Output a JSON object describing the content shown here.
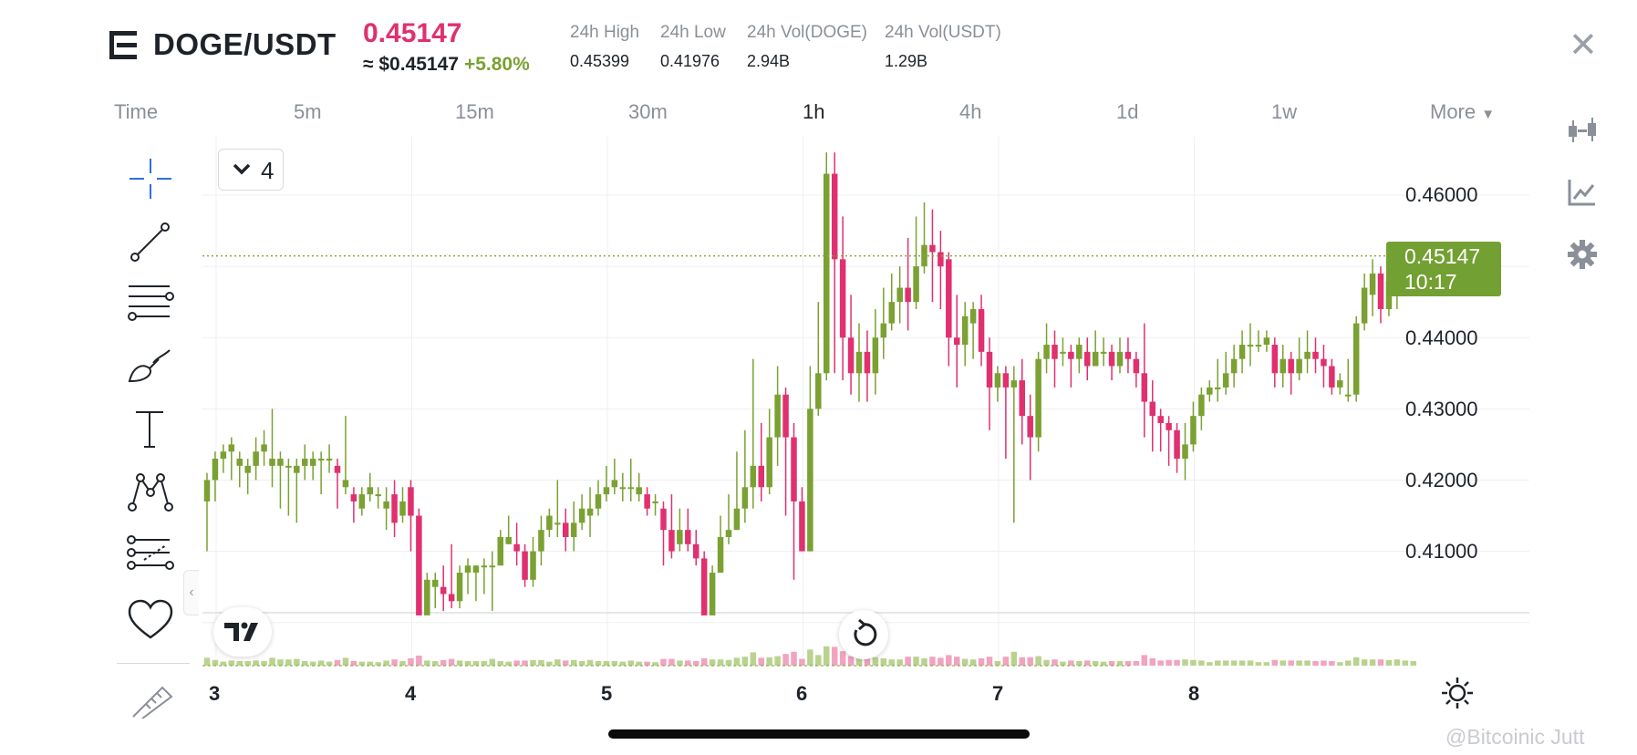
{
  "header": {
    "pair": "DOGE/USDT",
    "last_price": "0.45147",
    "usd_approx": "≈ $0.45147",
    "change": "+5.80%",
    "stats": [
      {
        "label": "24h High",
        "value": "0.45399"
      },
      {
        "label": "24h Low",
        "value": "0.41976"
      },
      {
        "label": "24h Vol(DOGE)",
        "value": "2.94B"
      },
      {
        "label": "24h Vol(USDT)",
        "value": "1.29B"
      }
    ]
  },
  "timeframes": {
    "time_label": "Time",
    "items": [
      "5m",
      "15m",
      "30m",
      "1h",
      "4h",
      "1d",
      "1w"
    ],
    "active": "1h",
    "more_label": "More"
  },
  "chart": {
    "interval_value": "4",
    "price_tag": {
      "price": "0.45147",
      "countdown": "10:17"
    },
    "watermark": "@Bitcoinic Jutt",
    "colors": {
      "up": "#7aa132",
      "down": "#e0306f",
      "tag": "#73a032"
    }
  },
  "chart_data": {
    "type": "candlestick",
    "x_ticks": [
      "3",
      "4",
      "5",
      "6",
      "7",
      "8"
    ],
    "y_ticks": [
      "0.46000",
      "0.44000",
      "0.43000",
      "0.42000",
      "0.41000"
    ],
    "ylim": [
      0.4,
      0.466
    ],
    "last_price": 0.45147,
    "start_day": 3,
    "interval_hours": 1,
    "candles": [
      [
        0.417,
        0.42,
        0.41,
        0.421
      ],
      [
        0.42,
        0.423,
        0.417,
        0.424
      ],
      [
        0.423,
        0.424,
        0.421,
        0.425
      ],
      [
        0.424,
        0.425,
        0.42,
        0.426
      ],
      [
        0.422,
        0.423,
        0.419,
        0.424
      ],
      [
        0.421,
        0.422,
        0.418,
        0.423
      ],
      [
        0.422,
        0.424,
        0.42,
        0.426
      ],
      [
        0.424,
        0.425,
        0.422,
        0.427
      ],
      [
        0.422,
        0.423,
        0.419,
        0.43
      ],
      [
        0.422,
        0.423,
        0.416,
        0.424
      ],
      [
        0.422,
        0.422,
        0.415,
        0.423
      ],
      [
        0.421,
        0.422,
        0.414,
        0.423
      ],
      [
        0.422,
        0.423,
        0.42,
        0.425
      ],
      [
        0.422,
        0.423,
        0.42,
        0.424
      ],
      [
        0.423,
        0.423,
        0.418,
        0.424
      ],
      [
        0.423,
        0.423,
        0.421,
        0.425
      ],
      [
        0.422,
        0.421,
        0.416,
        0.423
      ],
      [
        0.419,
        0.42,
        0.418,
        0.429
      ],
      [
        0.418,
        0.417,
        0.414,
        0.419
      ],
      [
        0.416,
        0.418,
        0.415,
        0.419
      ],
      [
        0.418,
        0.419,
        0.417,
        0.421
      ],
      [
        0.418,
        0.418,
        0.416,
        0.419
      ],
      [
        0.416,
        0.417,
        0.413,
        0.419
      ],
      [
        0.418,
        0.414,
        0.412,
        0.42
      ],
      [
        0.415,
        0.417,
        0.414,
        0.419
      ],
      [
        0.419,
        0.415,
        0.41,
        0.42
      ],
      [
        0.415,
        0.401,
        0.401,
        0.416
      ],
      [
        0.401,
        0.406,
        0.401,
        0.407
      ],
      [
        0.405,
        0.406,
        0.402,
        0.407
      ],
      [
        0.405,
        0.404,
        0.401,
        0.408
      ],
      [
        0.404,
        0.403,
        0.402,
        0.411
      ],
      [
        0.403,
        0.407,
        0.402,
        0.408
      ],
      [
        0.407,
        0.408,
        0.404,
        0.409
      ],
      [
        0.407,
        0.408,
        0.403,
        0.408
      ],
      [
        0.408,
        0.408,
        0.404,
        0.409
      ],
      [
        0.408,
        0.408,
        0.401,
        0.41
      ],
      [
        0.408,
        0.412,
        0.408,
        0.413
      ],
      [
        0.411,
        0.412,
        0.411,
        0.415
      ],
      [
        0.411,
        0.41,
        0.408,
        0.414
      ],
      [
        0.41,
        0.406,
        0.405,
        0.411
      ],
      [
        0.406,
        0.41,
        0.405,
        0.412
      ],
      [
        0.41,
        0.413,
        0.408,
        0.415
      ],
      [
        0.413,
        0.415,
        0.412,
        0.416
      ],
      [
        0.414,
        0.414,
        0.412,
        0.42
      ],
      [
        0.414,
        0.412,
        0.41,
        0.416
      ],
      [
        0.412,
        0.414,
        0.41,
        0.417
      ],
      [
        0.414,
        0.416,
        0.413,
        0.418
      ],
      [
        0.415,
        0.416,
        0.412,
        0.419
      ],
      [
        0.416,
        0.418,
        0.415,
        0.42
      ],
      [
        0.418,
        0.419,
        0.417,
        0.422
      ],
      [
        0.419,
        0.42,
        0.418,
        0.423
      ],
      [
        0.419,
        0.419,
        0.417,
        0.421
      ],
      [
        0.419,
        0.419,
        0.417,
        0.423
      ],
      [
        0.418,
        0.419,
        0.417,
        0.421
      ],
      [
        0.418,
        0.416,
        0.415,
        0.419
      ],
      [
        0.417,
        0.417,
        0.415,
        0.418
      ],
      [
        0.416,
        0.413,
        0.408,
        0.417
      ],
      [
        0.413,
        0.41,
        0.409,
        0.418
      ],
      [
        0.411,
        0.413,
        0.41,
        0.416
      ],
      [
        0.413,
        0.411,
        0.41,
        0.416
      ],
      [
        0.411,
        0.409,
        0.408,
        0.413
      ],
      [
        0.409,
        0.401,
        0.4,
        0.41
      ],
      [
        0.401,
        0.407,
        0.4,
        0.408
      ],
      [
        0.407,
        0.412,
        0.407,
        0.415
      ],
      [
        0.412,
        0.413,
        0.411,
        0.418
      ],
      [
        0.413,
        0.416,
        0.413,
        0.424
      ],
      [
        0.416,
        0.419,
        0.414,
        0.427
      ],
      [
        0.419,
        0.422,
        0.416,
        0.437
      ],
      [
        0.422,
        0.419,
        0.417,
        0.428
      ],
      [
        0.419,
        0.426,
        0.418,
        0.43
      ],
      [
        0.426,
        0.432,
        0.422,
        0.436
      ],
      [
        0.432,
        0.426,
        0.415,
        0.433
      ],
      [
        0.426,
        0.417,
        0.406,
        0.428
      ],
      [
        0.417,
        0.41,
        0.41,
        0.419
      ],
      [
        0.41,
        0.43,
        0.41,
        0.436
      ],
      [
        0.43,
        0.435,
        0.429,
        0.445
      ],
      [
        0.435,
        0.463,
        0.434,
        0.466
      ],
      [
        0.463,
        0.451,
        0.435,
        0.466
      ],
      [
        0.451,
        0.44,
        0.434,
        0.457
      ],
      [
        0.44,
        0.435,
        0.432,
        0.446
      ],
      [
        0.435,
        0.438,
        0.431,
        0.442
      ],
      [
        0.438,
        0.435,
        0.431,
        0.441
      ],
      [
        0.435,
        0.44,
        0.432,
        0.444
      ],
      [
        0.44,
        0.442,
        0.437,
        0.447
      ],
      [
        0.442,
        0.445,
        0.441,
        0.449
      ],
      [
        0.445,
        0.447,
        0.442,
        0.45
      ],
      [
        0.447,
        0.445,
        0.441,
        0.454
      ],
      [
        0.445,
        0.45,
        0.444,
        0.457
      ],
      [
        0.45,
        0.453,
        0.449,
        0.459
      ],
      [
        0.453,
        0.452,
        0.445,
        0.458
      ],
      [
        0.452,
        0.45,
        0.444,
        0.455
      ],
      [
        0.451,
        0.44,
        0.436,
        0.452
      ],
      [
        0.44,
        0.439,
        0.433,
        0.446
      ],
      [
        0.439,
        0.443,
        0.436,
        0.445
      ],
      [
        0.442,
        0.444,
        0.437,
        0.445
      ],
      [
        0.444,
        0.438,
        0.436,
        0.446
      ],
      [
        0.438,
        0.433,
        0.427,
        0.44
      ],
      [
        0.433,
        0.435,
        0.431,
        0.436
      ],
      [
        0.435,
        0.433,
        0.423,
        0.436
      ],
      [
        0.433,
        0.434,
        0.414,
        0.436
      ],
      [
        0.434,
        0.429,
        0.425,
        0.437
      ],
      [
        0.429,
        0.426,
        0.42,
        0.432
      ],
      [
        0.426,
        0.437,
        0.424,
        0.438
      ],
      [
        0.437,
        0.439,
        0.435,
        0.442
      ],
      [
        0.439,
        0.437,
        0.433,
        0.441
      ],
      [
        0.438,
        0.438,
        0.436,
        0.44
      ],
      [
        0.438,
        0.437,
        0.433,
        0.439
      ],
      [
        0.437,
        0.439,
        0.435,
        0.44
      ],
      [
        0.438,
        0.436,
        0.434,
        0.44
      ],
      [
        0.436,
        0.438,
        0.436,
        0.441
      ],
      [
        0.438,
        0.438,
        0.436,
        0.44
      ],
      [
        0.438,
        0.436,
        0.434,
        0.439
      ],
      [
        0.436,
        0.438,
        0.435,
        0.44
      ],
      [
        0.438,
        0.437,
        0.435,
        0.44
      ],
      [
        0.437,
        0.435,
        0.433,
        0.438
      ],
      [
        0.435,
        0.431,
        0.426,
        0.442
      ],
      [
        0.431,
        0.429,
        0.424,
        0.434
      ],
      [
        0.429,
        0.428,
        0.424,
        0.43
      ],
      [
        0.428,
        0.427,
        0.422,
        0.429
      ],
      [
        0.427,
        0.423,
        0.421,
        0.428
      ],
      [
        0.423,
        0.425,
        0.42,
        0.428
      ],
      [
        0.425,
        0.429,
        0.424,
        0.431
      ],
      [
        0.429,
        0.432,
        0.427,
        0.433
      ],
      [
        0.432,
        0.433,
        0.431,
        0.434
      ],
      [
        0.433,
        0.433,
        0.431,
        0.437
      ],
      [
        0.433,
        0.435,
        0.432,
        0.438
      ],
      [
        0.435,
        0.437,
        0.433,
        0.439
      ],
      [
        0.437,
        0.439,
        0.435,
        0.441
      ],
      [
        0.439,
        0.439,
        0.436,
        0.442
      ],
      [
        0.439,
        0.439,
        0.438,
        0.441
      ],
      [
        0.439,
        0.44,
        0.438,
        0.441
      ],
      [
        0.439,
        0.435,
        0.433,
        0.44
      ],
      [
        0.435,
        0.437,
        0.433,
        0.439
      ],
      [
        0.437,
        0.435,
        0.432,
        0.438
      ],
      [
        0.435,
        0.437,
        0.434,
        0.44
      ],
      [
        0.437,
        0.438,
        0.435,
        0.441
      ],
      [
        0.438,
        0.437,
        0.435,
        0.44
      ],
      [
        0.437,
        0.436,
        0.433,
        0.439
      ],
      [
        0.436,
        0.433,
        0.432,
        0.437
      ],
      [
        0.433,
        0.434,
        0.432,
        0.435
      ],
      [
        0.432,
        0.432,
        0.431,
        0.437
      ],
      [
        0.432,
        0.442,
        0.431,
        0.443
      ],
      [
        0.442,
        0.447,
        0.441,
        0.449
      ],
      [
        0.446,
        0.449,
        0.443,
        0.451
      ],
      [
        0.449,
        0.444,
        0.442,
        0.45
      ],
      [
        0.444,
        0.448,
        0.443,
        0.45
      ],
      [
        0.448,
        0.45,
        0.444,
        0.452
      ],
      [
        0.45,
        0.451,
        0.446,
        0.452
      ],
      [
        0.451,
        0.452,
        0.448,
        0.453
      ]
    ]
  },
  "icons": {
    "menu": "menu-icon",
    "close": "close-icon",
    "candle_type": "candlestick-icon",
    "indicators": "indicator-icon",
    "settings": "gear-icon",
    "tools": [
      "crosshair-icon",
      "trend-line-icon",
      "fib-retracement-icon",
      "brush-icon",
      "text-icon",
      "pattern-icon",
      "prediction-icon",
      "favorite-heart-icon",
      "ruler-icon"
    ],
    "brightness": "brightness-icon",
    "reset": "reset-icon",
    "logo": "tradingview-logo-icon"
  }
}
